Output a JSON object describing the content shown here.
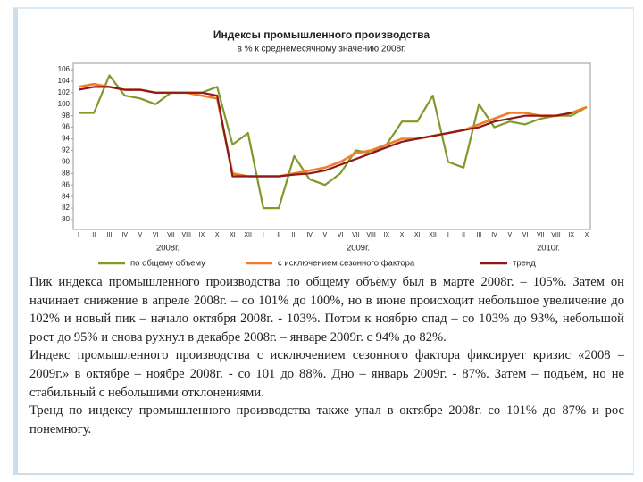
{
  "chart_data": {
    "type": "line",
    "title": "Индексы промышленного производства",
    "subtitle": "в % к среднемесячному значению 2008г.",
    "categories": [
      "I",
      "II",
      "III",
      "IV",
      "V",
      "VI",
      "VII",
      "VIII",
      "IX",
      "X",
      "XI",
      "XII",
      "I",
      "II",
      "III",
      "IV",
      "V",
      "VI",
      "VII",
      "VIII",
      "IX",
      "X",
      "XI",
      "XII",
      "I",
      "II",
      "III",
      "IV",
      "V",
      "VI",
      "VII",
      "VIII",
      "IX",
      "X"
    ],
    "year_labels": [
      "2008г.",
      "2009г.",
      "2010г."
    ],
    "series": [
      {
        "name": "по общему объему",
        "color": "#7f9a2a",
        "values": [
          98.5,
          98.5,
          105,
          101.5,
          101,
          100,
          102,
          102,
          102,
          103,
          93,
          95,
          82,
          82,
          91,
          87,
          86,
          88,
          92,
          91.5,
          93,
          97,
          97,
          101.5,
          90,
          89,
          100,
          96,
          97,
          96.5,
          97.5,
          98,
          98,
          99.5
        ]
      },
      {
        "name": "с исключением сезонного фактора",
        "color": "#f07d2a",
        "values": [
          103,
          103.5,
          103,
          102.5,
          102.5,
          102,
          102,
          102,
          101.5,
          101,
          88,
          87.5,
          87.5,
          87.5,
          88,
          88.5,
          89,
          90,
          91.5,
          92,
          93,
          94,
          94,
          94.5,
          95,
          95.5,
          96.5,
          97.5,
          98.5,
          98.5,
          98,
          98,
          98.5,
          99.5
        ]
      },
      {
        "name": "тренд",
        "color": "#8b1a1a",
        "values": [
          102.5,
          103,
          103,
          102.5,
          102.5,
          102,
          102,
          102,
          102,
          101.5,
          87.5,
          87.5,
          87.5,
          87.5,
          87.8,
          88,
          88.5,
          89.5,
          90.5,
          91.5,
          92.5,
          93.5,
          94,
          94.5,
          95,
          95.5,
          96,
          97,
          97.5,
          98,
          98,
          98,
          98.5,
          null
        ]
      }
    ],
    "ylim": [
      80,
      106
    ],
    "yticks": [
      80,
      82,
      84,
      86,
      88,
      90,
      92,
      94,
      96,
      98,
      100,
      102,
      104,
      106
    ],
    "grid": false,
    "legend": "bottom"
  },
  "text": [
    "Пик индекса промышленного производства по общему объёму был в марте 2008г. – 105%. Затем он начинает снижение в апреле 2008г. – со 101% до 100%, но в июне происходит небольшое увеличение до 102% и новый пик – начало октября 2008г. - 103%. Потом к ноябрю спад – со 103% до 93%, небольшой рост до 95% и снова рухнул в декабре 2008г. – январе 2009г. с 94% до 82%.",
    "Индекс промышленного производства с исключением сезонного фактора фиксирует кризис «2008 – 2009г.» в октябре – ноябре 2008г. - со 101 до 88%. Дно – январь 2009г. - 87%. Затем – подъём, но не стабильный с небольшими отклонениями.",
    "Тренд по индексу промышленного производства также упал в октябре 2008г. со 101% до 87% и рос понемногу."
  ]
}
